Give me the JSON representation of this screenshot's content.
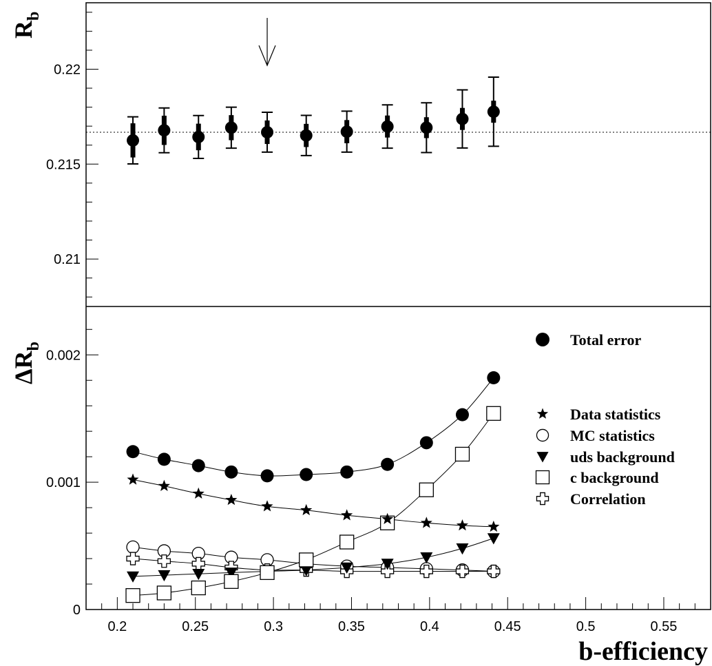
{
  "chart_data": [
    {
      "type": "scatter",
      "panel": "top",
      "ylabel": "R",
      "ylabel_sub": "b",
      "ylim": [
        0.2075,
        0.2235
      ],
      "yticks": [
        0.21,
        0.215,
        0.22
      ],
      "ytick_labels": [
        "0.21",
        "0.215",
        "0.22"
      ],
      "reference_line": 0.21668,
      "arrow_x": 0.296,
      "series": [
        {
          "x": [
            0.21,
            0.23,
            0.252,
            0.273,
            0.296,
            0.321,
            0.347,
            0.373,
            0.398,
            0.421,
            0.441
          ],
          "y": [
            0.21625,
            0.21678,
            0.21643,
            0.21692,
            0.21668,
            0.21651,
            0.21671,
            0.21698,
            0.21692,
            0.21738,
            0.21776
          ],
          "inner_err": [
            0.0009,
            0.00077,
            0.0007,
            0.00066,
            0.00062,
            0.00061,
            0.00061,
            0.00058,
            0.00055,
            0.00058,
            0.00058
          ],
          "outer_err": [
            0.00124,
            0.00118,
            0.00113,
            0.00108,
            0.00105,
            0.00106,
            0.00108,
            0.00114,
            0.00131,
            0.00153,
            0.00182
          ]
        }
      ]
    },
    {
      "type": "line",
      "panel": "bottom",
      "ylabel": "ΔR",
      "ylabel_sub": "b",
      "xlabel": "b-efficiency",
      "xlim": [
        0.18,
        0.58
      ],
      "ylim": [
        0,
        0.00238
      ],
      "xticks": [
        0.2,
        0.25,
        0.3,
        0.35,
        0.4,
        0.45,
        0.5,
        0.55
      ],
      "xtick_labels": [
        "0.2",
        "0.25",
        "0.3",
        "0.35",
        "0.4",
        "0.45",
        "0.5",
        "0.55"
      ],
      "yticks": [
        0,
        0.001,
        0.002
      ],
      "ytick_labels": [
        "0",
        "0.001",
        "0.002"
      ],
      "x": [
        0.21,
        0.23,
        0.252,
        0.273,
        0.296,
        0.321,
        0.347,
        0.373,
        0.398,
        0.421,
        0.441
      ],
      "series": [
        {
          "name": "Total error",
          "marker": "filled-circle",
          "values": [
            0.00124,
            0.00118,
            0.00113,
            0.00108,
            0.00105,
            0.00106,
            0.00108,
            0.00114,
            0.00131,
            0.00153,
            0.00182
          ]
        },
        {
          "name": "Data statistics",
          "marker": "star",
          "values": [
            0.00102,
            0.00097,
            0.00091,
            0.00086,
            0.00081,
            0.00078,
            0.00074,
            0.00071,
            0.00068,
            0.00066,
            0.00065
          ]
        },
        {
          "name": "MC statistics",
          "marker": "open-circle",
          "values": [
            0.00049,
            0.00046,
            0.00044,
            0.00041,
            0.00039,
            0.00036,
            0.00034,
            0.00033,
            0.00032,
            0.00031,
            0.0003
          ]
        },
        {
          "name": "uds background",
          "marker": "filled-triangle-down",
          "values": [
            0.00026,
            0.00027,
            0.00028,
            0.00029,
            0.0003,
            0.00031,
            0.00033,
            0.00036,
            0.00041,
            0.00048,
            0.00056
          ]
        },
        {
          "name": "c background",
          "marker": "open-square",
          "values": [
            0.00011,
            0.00013,
            0.00017,
            0.00022,
            0.00029,
            0.00039,
            0.00053,
            0.00068,
            0.00094,
            0.00122,
            0.00154
          ]
        },
        {
          "name": "Correlation",
          "marker": "open-cross",
          "values": [
            0.0004,
            0.00038,
            0.00036,
            0.00033,
            0.00031,
            0.00031,
            0.0003,
            0.0003,
            0.0003,
            0.0003,
            0.0003
          ]
        }
      ]
    }
  ]
}
